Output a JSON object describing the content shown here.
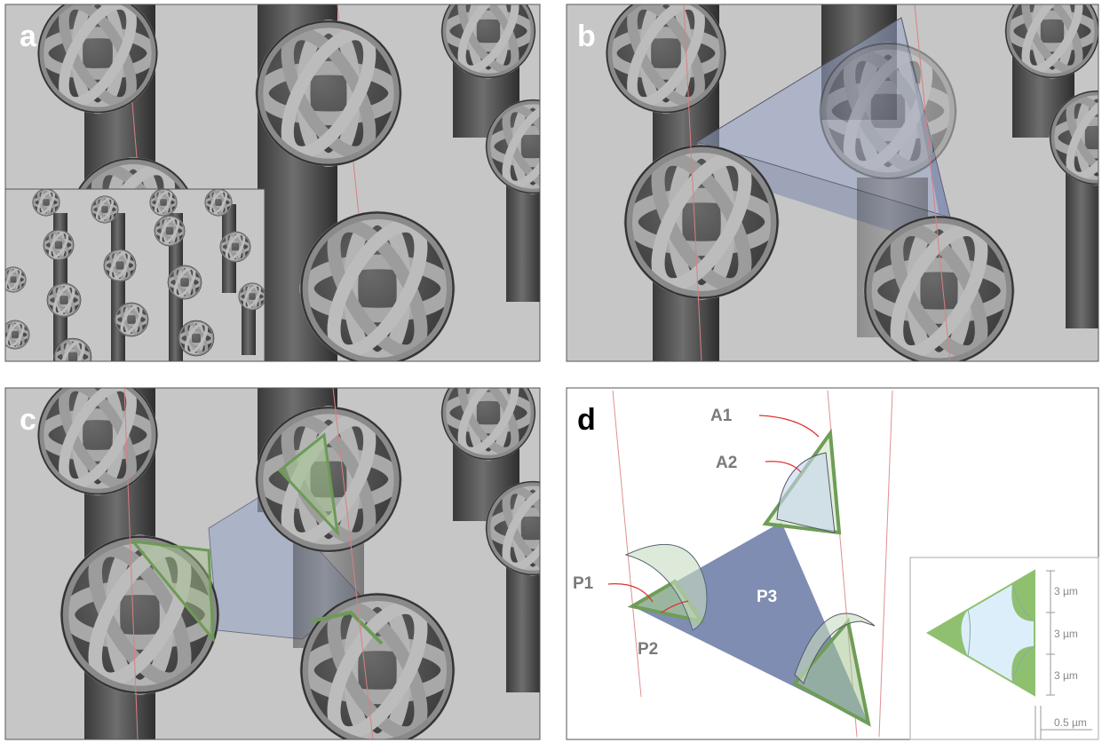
{
  "panels": [
    {
      "label": "a"
    },
    {
      "label": "b"
    },
    {
      "label": "c"
    },
    {
      "label": "d",
      "annotations": [
        "A1",
        "A2",
        "P1",
        "P2",
        "P3"
      ],
      "scale_labels": [
        "3 µm",
        "3 µm",
        "3 µm",
        "0.5 µm"
      ]
    }
  ]
}
